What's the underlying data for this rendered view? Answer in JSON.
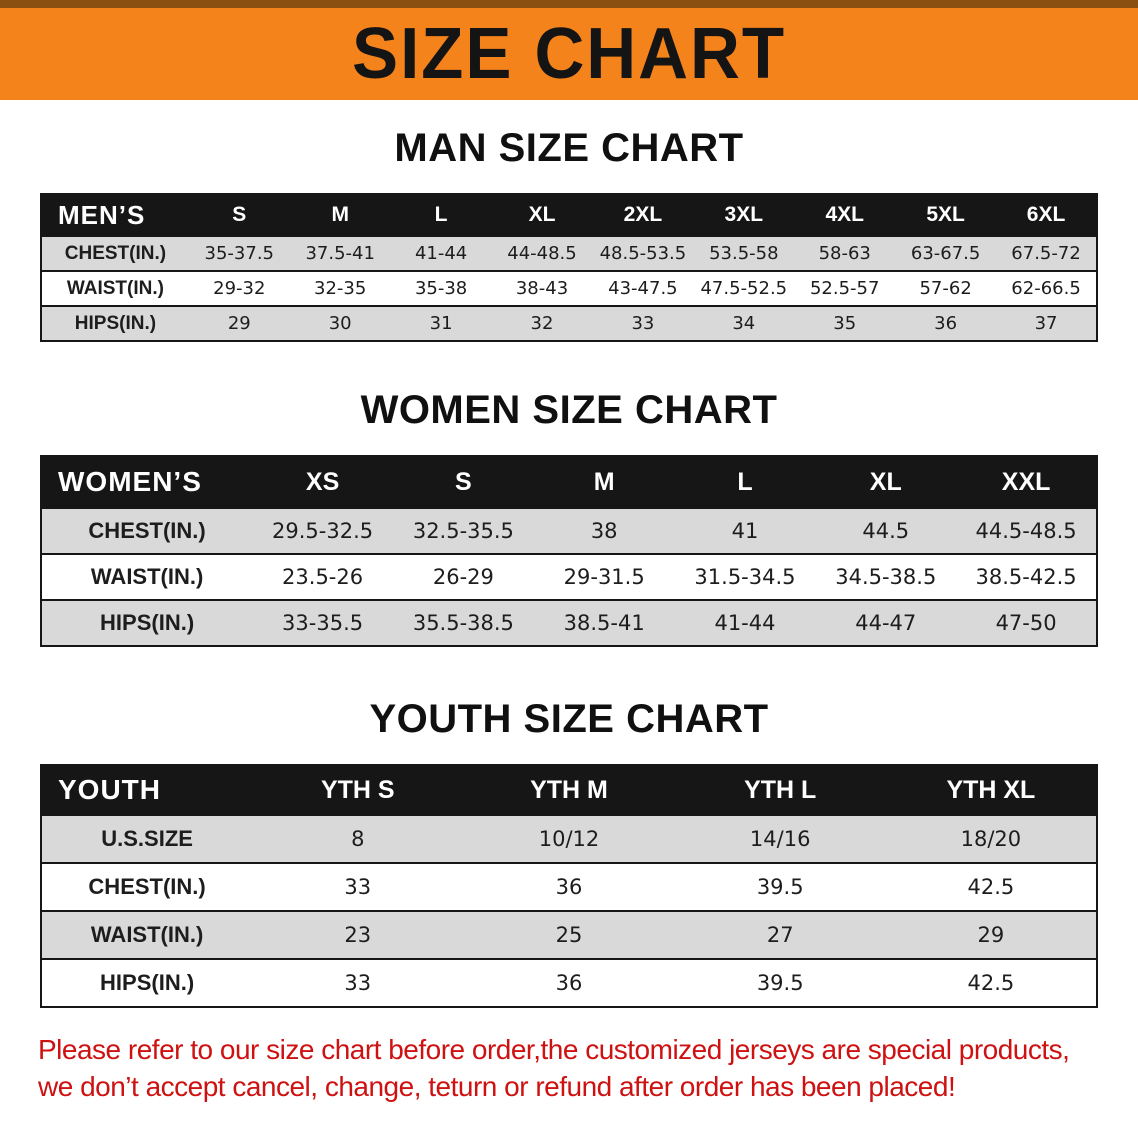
{
  "banner": {
    "title": "SIZE CHART"
  },
  "colors": {
    "banner_bg": "#F5831C",
    "banner_edge": "#8A5012",
    "header_bg": "#161616",
    "row_alt": "#D9D9D9",
    "footer_red": "#CE1111"
  },
  "man_section": {
    "heading": "MAN SIZE CHART",
    "table": {
      "header": [
        "MEN’S",
        "S",
        "M",
        "L",
        "XL",
        "2XL",
        "3XL",
        "4XL",
        "5XL",
        "6XL"
      ],
      "rows": [
        [
          "CHEST(IN.)",
          "35-37.5",
          "37.5-41",
          "41-44",
          "44-48.5",
          "48.5-53.5",
          "53.5-58",
          "58-63",
          "63-67.5",
          "67.5-72"
        ],
        [
          "WAIST(IN.)",
          "29-32",
          "32-35",
          "35-38",
          "38-43",
          "43-47.5",
          "47.5-52.5",
          "52.5-57",
          "57-62",
          "62-66.5"
        ],
        [
          "HIPS(IN.)",
          "29",
          "30",
          "31",
          "32",
          "33",
          "34",
          "35",
          "36",
          "37"
        ]
      ]
    }
  },
  "women_section": {
    "heading": "WOMEN SIZE CHART",
    "table": {
      "header": [
        "WOMEN’S",
        "XS",
        "S",
        "M",
        "L",
        "XL",
        "XXL"
      ],
      "rows": [
        [
          "CHEST(IN.)",
          "29.5-32.5",
          "32.5-35.5",
          "38",
          "41",
          "44.5",
          "44.5-48.5"
        ],
        [
          "WAIST(IN.)",
          "23.5-26",
          "26-29",
          "29-31.5",
          "31.5-34.5",
          "34.5-38.5",
          "38.5-42.5"
        ],
        [
          "HIPS(IN.)",
          "33-35.5",
          "35.5-38.5",
          "38.5-41",
          "41-44",
          "44-47",
          "47-50"
        ]
      ]
    }
  },
  "youth_section": {
    "heading": "YOUTH SIZE CHART",
    "table": {
      "header": [
        "YOUTH",
        "YTH S",
        "YTH M",
        "YTH L",
        "YTH XL"
      ],
      "rows": [
        [
          "U.S.SIZE",
          "8",
          "10/12",
          "14/16",
          "18/20"
        ],
        [
          "CHEST(IN.)",
          "33",
          "36",
          "39.5",
          "42.5"
        ],
        [
          "WAIST(IN.)",
          "23",
          "25",
          "27",
          "29"
        ],
        [
          "HIPS(IN.)",
          "33",
          "36",
          "39.5",
          "42.5"
        ]
      ]
    }
  },
  "footer": {
    "line1": "Please refer to our size chart before order,the customized jerseys are special products,",
    "line2": "we don’t accept cancel, change, teturn or refund after order has been placed!"
  }
}
